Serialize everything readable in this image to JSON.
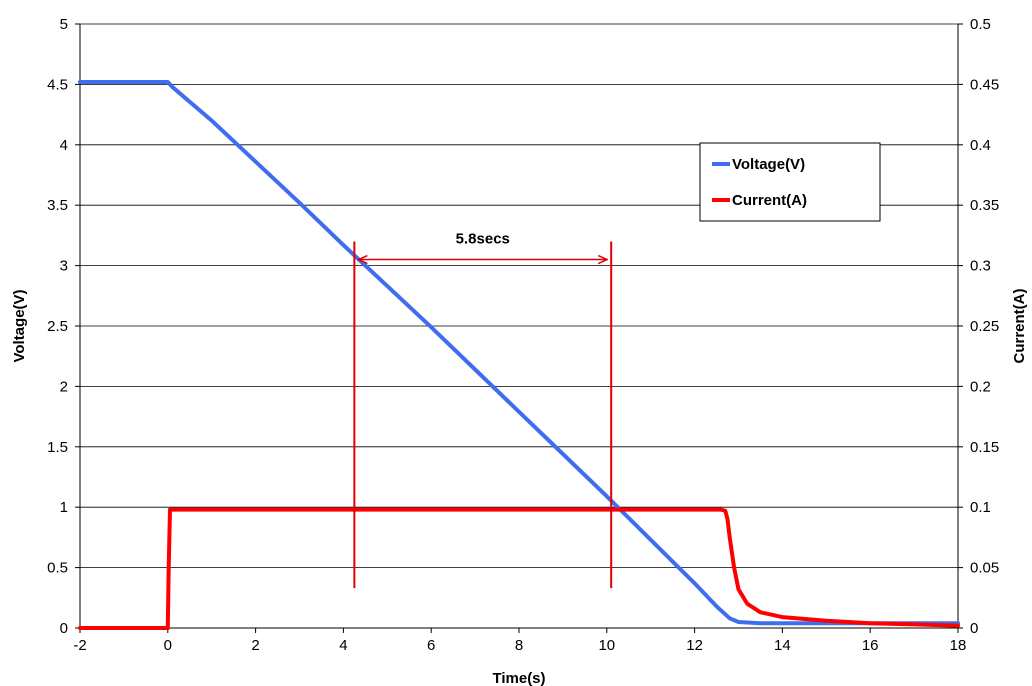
{
  "chart_data": {
    "type": "line",
    "xlabel": "Time(s)",
    "ylabel_left": "Voltage(V)",
    "ylabel_right": "Current(A)",
    "xlim": [
      -2,
      18
    ],
    "ylim_left": [
      0,
      5
    ],
    "ylim_right": [
      0,
      0.5
    ],
    "x_ticks": [
      "-2",
      "0",
      "2",
      "4",
      "6",
      "8",
      "10",
      "12",
      "14",
      "16",
      "18"
    ],
    "y_left_ticks": [
      "0",
      "0.5",
      "1",
      "1.5",
      "2",
      "2.5",
      "3",
      "3.5",
      "4",
      "4.5",
      "5"
    ],
    "y_right_ticks": [
      "0",
      "0.05",
      "0.1",
      "0.15",
      "0.2",
      "0.25",
      "0.3",
      "0.35",
      "0.4",
      "0.45",
      "0.5"
    ],
    "grid": "horizontal",
    "legend_position": "top-right",
    "series": [
      {
        "name": "Voltage(V)",
        "axis": "left",
        "color": "#3f6df0",
        "x": [
          -2,
          0,
          0.1,
          1,
          2,
          3,
          4,
          5,
          6,
          7,
          8,
          9,
          10,
          11,
          12,
          12.5,
          12.8,
          13,
          13.5,
          14,
          16,
          18
        ],
        "y": [
          4.52,
          4.52,
          4.48,
          4.2,
          3.86,
          3.52,
          3.17,
          2.83,
          2.49,
          2.14,
          1.79,
          1.44,
          1.09,
          0.73,
          0.37,
          0.18,
          0.08,
          0.05,
          0.04,
          0.04,
          0.04,
          0.04
        ]
      },
      {
        "name": "Current(A)",
        "axis": "right",
        "color": "#ff0000",
        "x": [
          -2,
          -0.05,
          0,
          0.02,
          0.05,
          1,
          5,
          10,
          12,
          12.6,
          12.7,
          12.75,
          12.8,
          12.9,
          13,
          13.2,
          13.5,
          14,
          15,
          16,
          17,
          18
        ],
        "y": [
          0,
          0,
          0,
          0.05,
          0.098,
          0.098,
          0.098,
          0.098,
          0.098,
          0.098,
          0.097,
          0.09,
          0.075,
          0.05,
          0.032,
          0.02,
          0.013,
          0.009,
          0.006,
          0.004,
          0.003,
          0.002
        ]
      }
    ],
    "annotations": {
      "label": "5.8secs",
      "x_start": 4.25,
      "x_end": 10.1,
      "arrow_y": 3.05,
      "marker_y_range": [
        0.33,
        3.2
      ],
      "color": "#e00000"
    }
  }
}
